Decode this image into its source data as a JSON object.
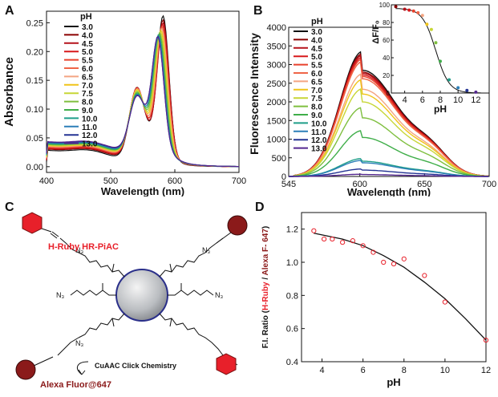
{
  "panels": {
    "A": {
      "label": "A",
      "chart_data": {
        "type": "line",
        "xlabel": "Wavelength (nm)",
        "ylabel": "Absorbance",
        "xlim": [
          400,
          700
        ],
        "ylim": [
          -0.01,
          0.27
        ],
        "xticks": [
          400,
          500,
          600,
          700
        ],
        "yticks": [
          0.0,
          0.05,
          0.1,
          0.15,
          0.2,
          0.25
        ],
        "ytick_labels": [
          "0.00",
          "0.05",
          "0.10",
          "0.15",
          "0.20",
          "0.25"
        ],
        "legend_title": "pH",
        "legend_position": "top-left",
        "series": [
          {
            "name": "3.0",
            "color": "#111111",
            "peak": 0.255,
            "peak_x": 582,
            "shoulder": 0.102,
            "base": 0.008
          },
          {
            "name": "4.0",
            "color": "#8b0000",
            "peak": 0.245,
            "peak_x": 582,
            "shoulder": 0.1,
            "base": 0.01
          },
          {
            "name": "4.5",
            "color": "#b5121b",
            "peak": 0.238,
            "peak_x": 582,
            "shoulder": 0.098,
            "base": 0.011
          },
          {
            "name": "5.0",
            "color": "#d7191c",
            "peak": 0.233,
            "peak_x": 581,
            "shoulder": 0.097,
            "base": 0.012
          },
          {
            "name": "5.5",
            "color": "#e8412c",
            "peak": 0.228,
            "peak_x": 581,
            "shoulder": 0.096,
            "base": 0.013
          },
          {
            "name": "6.0",
            "color": "#ef6548",
            "peak": 0.224,
            "peak_x": 580,
            "shoulder": 0.094,
            "base": 0.014
          },
          {
            "name": "6.5",
            "color": "#f4a582",
            "peak": 0.22,
            "peak_x": 580,
            "shoulder": 0.092,
            "base": 0.015
          },
          {
            "name": "7.0",
            "color": "#f0c419",
            "peak": 0.215,
            "peak_x": 579,
            "shoulder": 0.09,
            "base": 0.016
          },
          {
            "name": "7.5",
            "color": "#c7d636",
            "peak": 0.21,
            "peak_x": 578,
            "shoulder": 0.087,
            "base": 0.017
          },
          {
            "name": "8.0",
            "color": "#7fbf3f",
            "peak": 0.205,
            "peak_x": 577,
            "shoulder": 0.084,
            "base": 0.018
          },
          {
            "name": "9.0",
            "color": "#3fae49",
            "peak": 0.2,
            "peak_x": 576,
            "shoulder": 0.081,
            "base": 0.019
          },
          {
            "name": "10.0",
            "color": "#1f9e89",
            "peak": 0.196,
            "peak_x": 575,
            "shoulder": 0.078,
            "base": 0.02
          },
          {
            "name": "11.0",
            "color": "#2c7fb8",
            "peak": 0.193,
            "peak_x": 575,
            "shoulder": 0.076,
            "base": 0.021
          },
          {
            "name": "12.0",
            "color": "#253494",
            "peak": 0.19,
            "peak_x": 574,
            "shoulder": 0.074,
            "base": 0.022
          },
          {
            "name": "13.0",
            "color": "#54278f",
            "peak": 0.188,
            "peak_x": 574,
            "shoulder": 0.072,
            "base": 0.023
          }
        ]
      }
    },
    "B": {
      "label": "B",
      "chart_data": {
        "type": "line",
        "xlabel": "Wavelength (nm)",
        "ylabel": "Fluorescence Intensity",
        "xlim": [
          545,
          700
        ],
        "ylim": [
          0,
          4000
        ],
        "xticks": [
          545,
          600,
          650,
          700
        ],
        "yticks": [
          0,
          500,
          1000,
          1500,
          2000,
          2500,
          3000,
          3500,
          4000
        ],
        "legend_title": "pH",
        "legend_position": "top-left",
        "series": [
          {
            "name": "3.0",
            "color": "#111111",
            "peak": 3350
          },
          {
            "name": "4.0",
            "color": "#8b0000",
            "peak": 3290
          },
          {
            "name": "4.5",
            "color": "#b5121b",
            "peak": 3250
          },
          {
            "name": "5.0",
            "color": "#d7191c",
            "peak": 3200
          },
          {
            "name": "5.5",
            "color": "#e8412c",
            "peak": 3150
          },
          {
            "name": "6.0",
            "color": "#ef6548",
            "peak": 3080
          },
          {
            "name": "6.5",
            "color": "#f4a582",
            "peak": 2750
          },
          {
            "name": "7.0",
            "color": "#f0c419",
            "peak": 2600
          },
          {
            "name": "7.5",
            "color": "#c7d636",
            "peak": 2350
          },
          {
            "name": "8.0",
            "color": "#7fbf3f",
            "peak": 1850
          },
          {
            "name": "9.0",
            "color": "#3fae49",
            "peak": 1230
          },
          {
            "name": "10.0",
            "color": "#1f9e89",
            "peak": 480
          },
          {
            "name": "11.0",
            "color": "#2c7fb8",
            "peak": 430
          },
          {
            "name": "12.0",
            "color": "#253494",
            "peak": 200
          },
          {
            "name": "13.0",
            "color": "#54278f",
            "peak": 60
          }
        ],
        "inset": {
          "xlabel": "pH",
          "ylabel": "ΔF/F₀",
          "xlim": [
            2.5,
            13.5
          ],
          "ylim": [
            0,
            1
          ],
          "xticks": [
            4,
            6,
            8,
            10,
            12
          ],
          "yticks": [
            0,
            0.2,
            0.4,
            0.6,
            0.8,
            1.0
          ],
          "ytick_labels": [
            "0",
            "20",
            "40",
            "60",
            "80",
            "100"
          ],
          "points": [
            {
              "x": 3.0,
              "y": 0.98,
              "color": "#8b0000"
            },
            {
              "x": 4.0,
              "y": 0.95,
              "color": "#b5121b"
            },
            {
              "x": 4.5,
              "y": 0.94,
              "color": "#d7191c"
            },
            {
              "x": 5.0,
              "y": 0.93,
              "color": "#e8412c"
            },
            {
              "x": 5.5,
              "y": 0.91,
              "color": "#ef6548"
            },
            {
              "x": 6.0,
              "y": 0.88,
              "color": "#f4a582"
            },
            {
              "x": 6.5,
              "y": 0.78,
              "color": "#f0c419"
            },
            {
              "x": 7.0,
              "y": 0.72,
              "color": "#c7d636"
            },
            {
              "x": 7.5,
              "y": 0.57,
              "color": "#7fbf3f"
            },
            {
              "x": 8.0,
              "y": 0.36,
              "color": "#3fae49"
            },
            {
              "x": 9.0,
              "y": 0.15,
              "color": "#1f9e89"
            },
            {
              "x": 10.0,
              "y": 0.06,
              "color": "#2c7fb8"
            },
            {
              "x": 11.0,
              "y": 0.03,
              "color": "#253494"
            },
            {
              "x": 12.0,
              "y": 0.01,
              "color": "#54278f"
            }
          ]
        }
      }
    },
    "C": {
      "label": "C",
      "hruby_label": "H-Ruby HR-PiAC",
      "alexa_label": "Alexa Fluor@647",
      "reaction_label": "CuAAC Click Chemistry",
      "n3": "N₃",
      "hruby_color": "#e8202a",
      "alexa_color": "#8b1a1a"
    },
    "D": {
      "label": "D",
      "chart_data": {
        "type": "scatter",
        "xlabel": "pH",
        "ylabel_parts": [
          "F.I. Ratio (",
          "H-Ruby",
          " / ",
          "Alexa F- 647",
          ")"
        ],
        "xlim": [
          3,
          12
        ],
        "ylim": [
          0.4,
          1.3
        ],
        "xticks": [
          4,
          6,
          8,
          10,
          12
        ],
        "yticks": [
          0.4,
          0.6,
          0.8,
          1.0,
          1.2
        ],
        "ytick_labels": [
          "0.4",
          "0.6",
          "0.8",
          "1.0",
          "1.2"
        ],
        "points": [
          {
            "x": 3.6,
            "y": 1.19
          },
          {
            "x": 4.1,
            "y": 1.14
          },
          {
            "x": 4.5,
            "y": 1.14
          },
          {
            "x": 5.0,
            "y": 1.12
          },
          {
            "x": 5.5,
            "y": 1.13
          },
          {
            "x": 6.0,
            "y": 1.1
          },
          {
            "x": 6.5,
            "y": 1.06
          },
          {
            "x": 7.0,
            "y": 1.0
          },
          {
            "x": 7.5,
            "y": 0.99
          },
          {
            "x": 8.0,
            "y": 1.02
          },
          {
            "x": 9.0,
            "y": 0.92
          },
          {
            "x": 10.0,
            "y": 0.76
          },
          {
            "x": 12.0,
            "y": 0.53
          }
        ],
        "fit": [
          {
            "x": 3.6,
            "y": 1.175
          },
          {
            "x": 5.0,
            "y": 1.14
          },
          {
            "x": 6.0,
            "y": 1.1
          },
          {
            "x": 7.0,
            "y": 1.04
          },
          {
            "x": 8.0,
            "y": 0.97
          },
          {
            "x": 9.0,
            "y": 0.88
          },
          {
            "x": 10.0,
            "y": 0.78
          },
          {
            "x": 11.0,
            "y": 0.66
          },
          {
            "x": 12.0,
            "y": 0.53
          }
        ]
      }
    }
  }
}
